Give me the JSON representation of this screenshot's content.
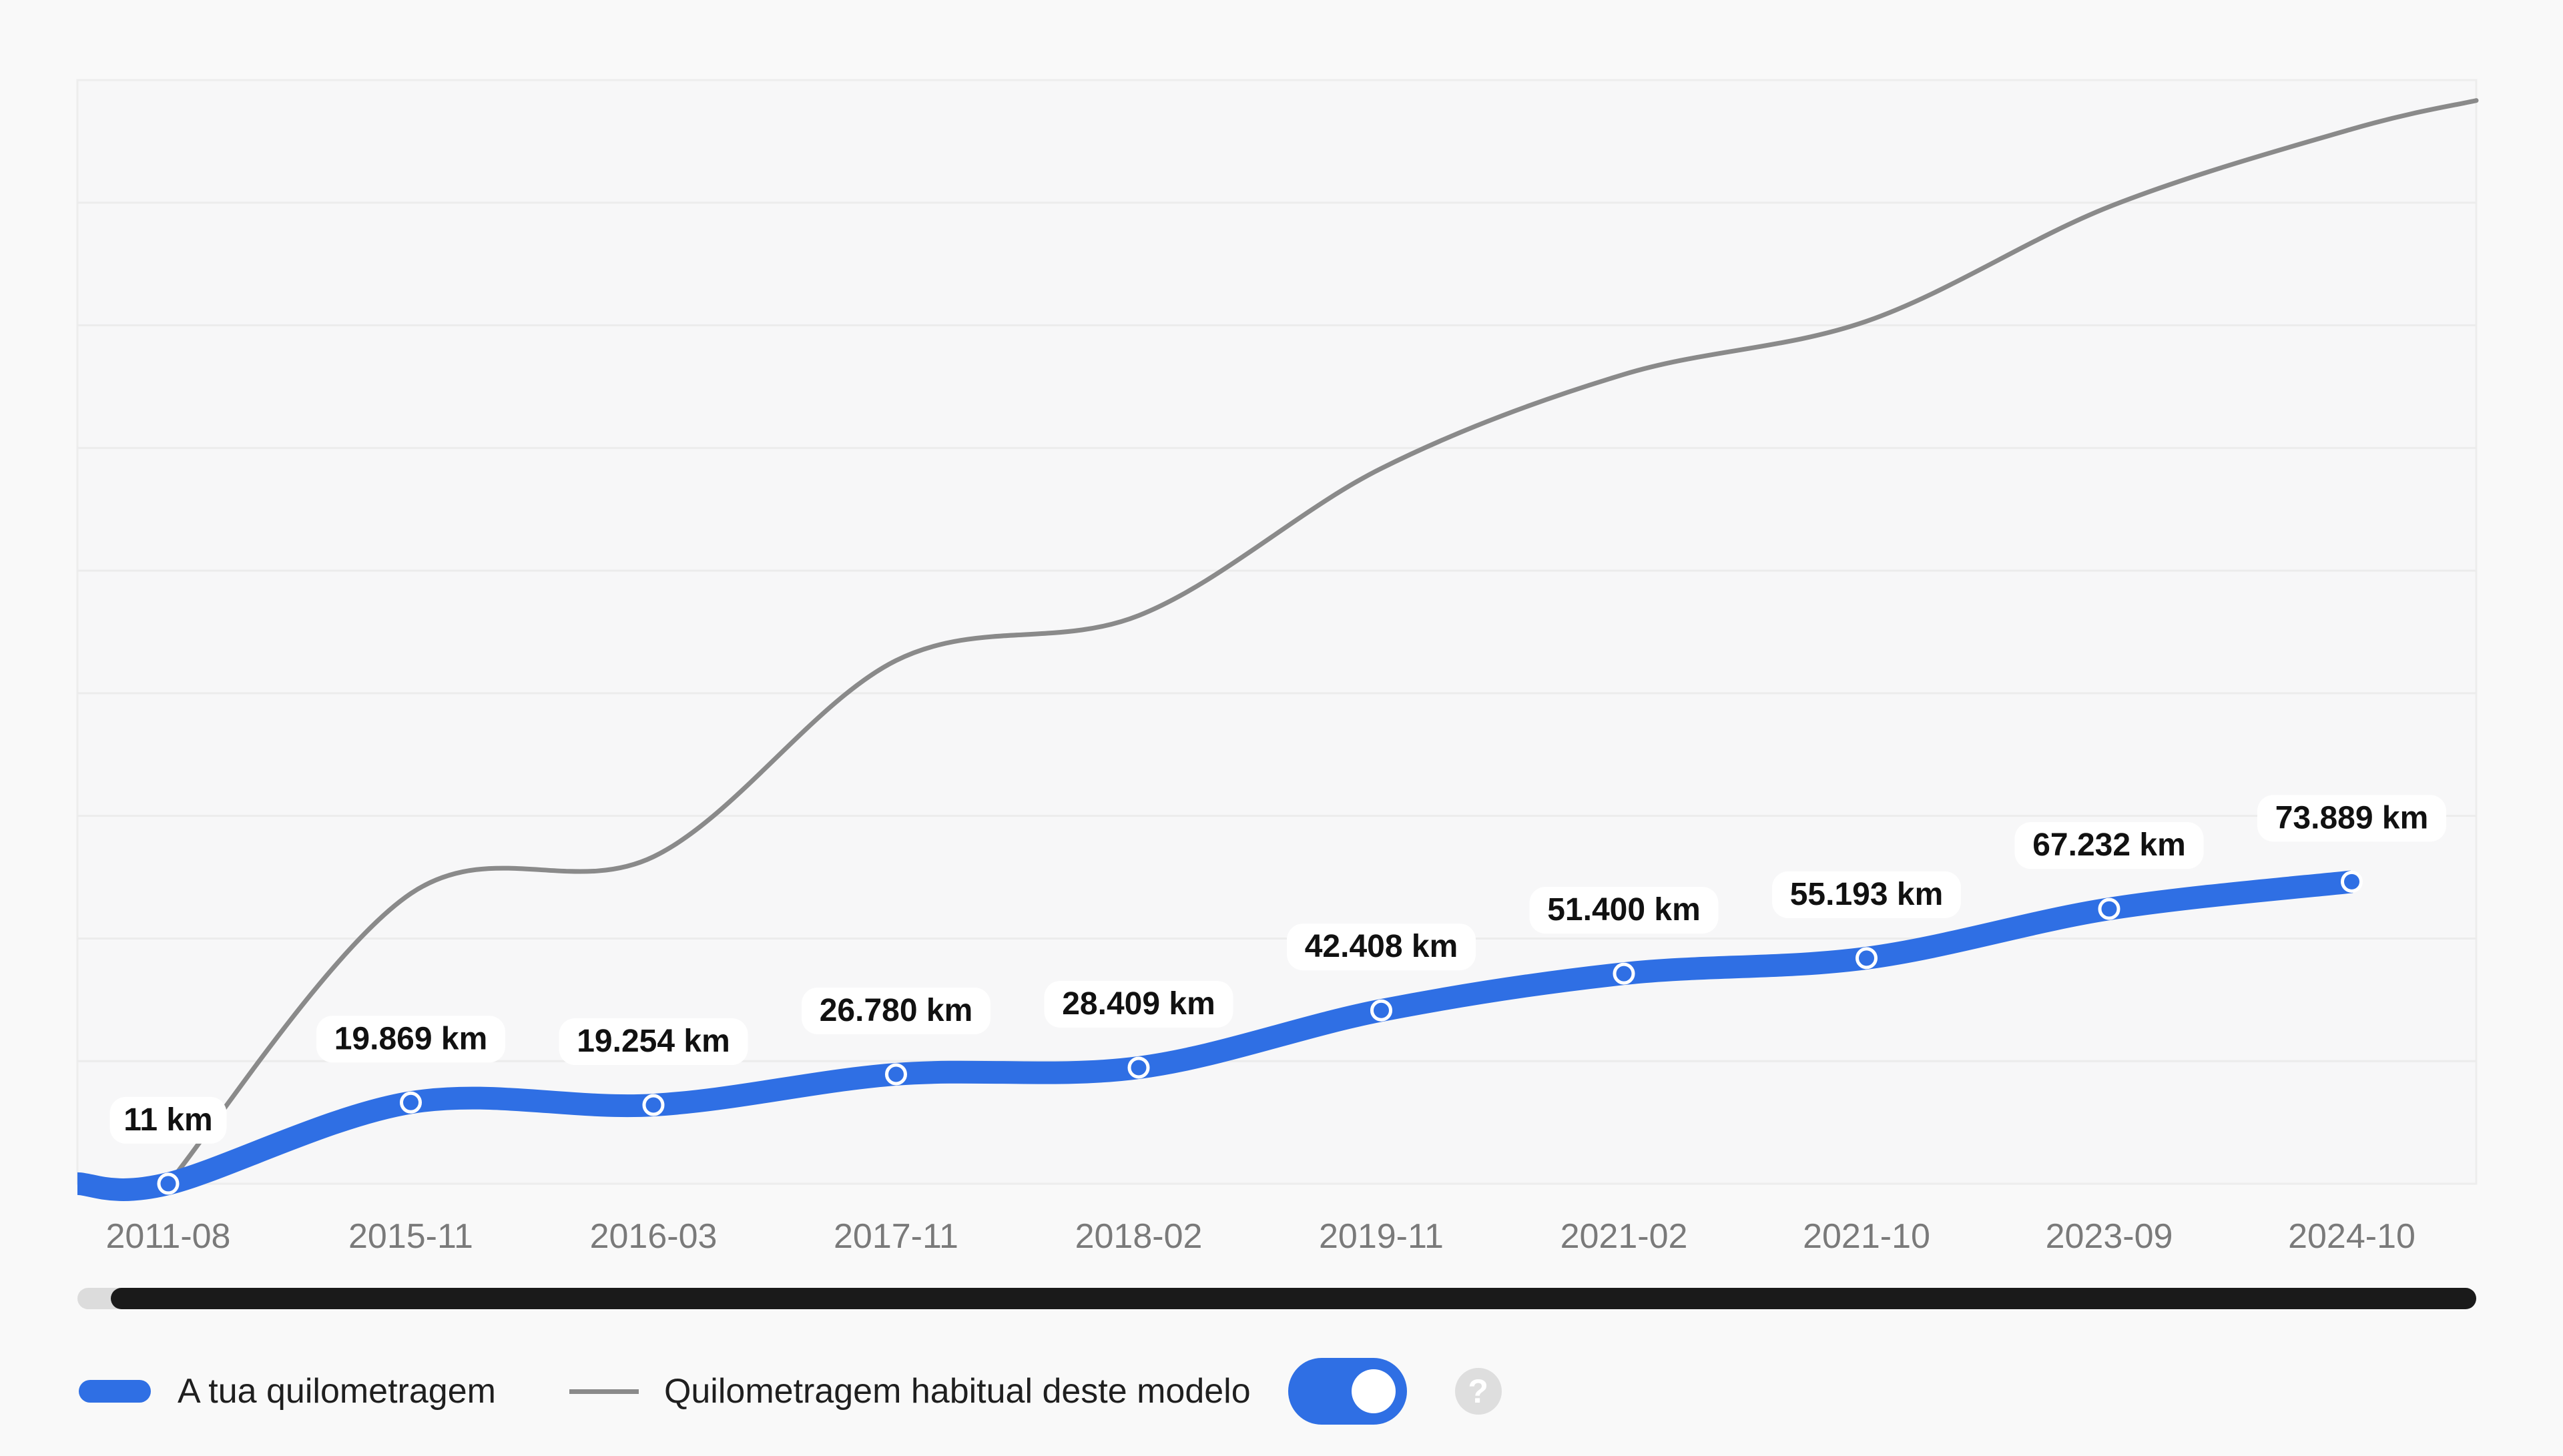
{
  "chart_data": {
    "type": "line",
    "categories": [
      "2011-08",
      "2015-11",
      "2016-03",
      "2017-11",
      "2018-02",
      "2019-11",
      "2021-02",
      "2021-10",
      "2023-09",
      "2024-10"
    ],
    "series": [
      {
        "name": "A tua quilometragem",
        "values": [
          11,
          19869,
          19254,
          26780,
          28409,
          42408,
          51400,
          55193,
          67232,
          73889
        ],
        "labels": [
          "11 km",
          "19.869 km",
          "19.254 km",
          "26.780 km",
          "28.409 km",
          "42.408 km",
          "51.400 km",
          "55.193 km",
          "67.232 km",
          "73.889 km"
        ],
        "color": "#2f6fe4"
      },
      {
        "name": "Quilometragem habitual deste modelo",
        "values": [
          0,
          71000,
          80000,
          128000,
          139000,
          175000,
          198000,
          211000,
          239000,
          258000
        ],
        "end_value": 265000,
        "color": "#8a8a8a"
      }
    ],
    "ylim": [
      0,
      270000
    ],
    "grid": true,
    "legend_position": "bottom-left"
  },
  "legend": {
    "series1_label": "A tua quilometragem",
    "series2_label": "Quilometragem habitual deste modelo",
    "toggle_on": true,
    "help_glyph": "?"
  },
  "colors": {
    "primary": "#2f6fe4",
    "secondary_line": "#8a8a8a",
    "scrollbar": "#1a1a1a",
    "grid": "#ececec"
  }
}
